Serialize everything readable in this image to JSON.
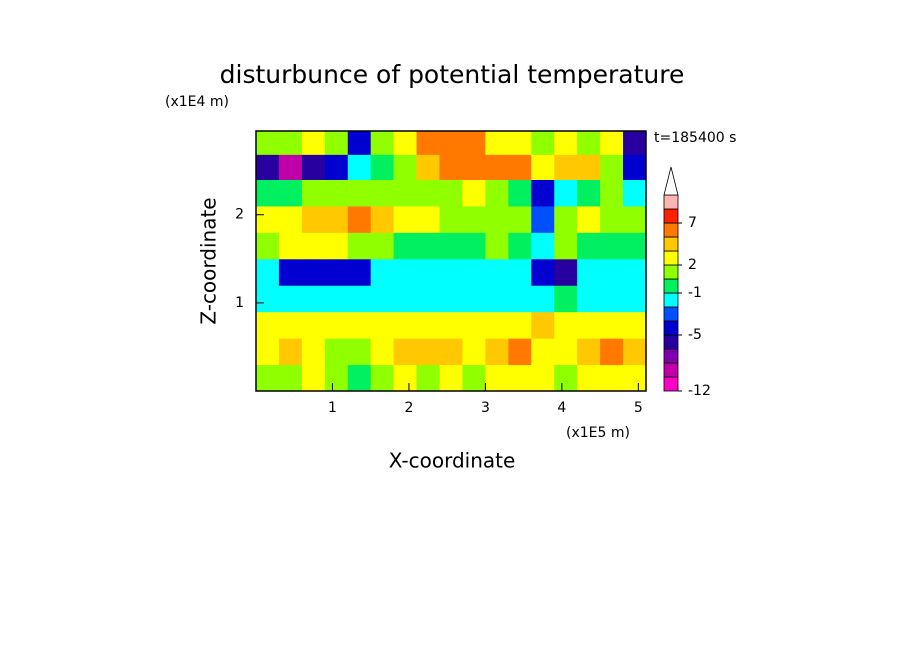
{
  "chart_data": {
    "type": "contourf",
    "title": "disturbunce of potential temperature",
    "xlabel": "X-coordinate",
    "ylabel": "Z-coordinate",
    "x_unit": "(x1E5 m)",
    "y_unit": "(x1E4 m)",
    "time_label": "t=185400 s",
    "xlim": [
      0,
      5.1
    ],
    "ylim": [
      0,
      2.95
    ],
    "xticks": [
      1,
      2,
      3,
      4,
      5
    ],
    "yticks": [
      1,
      2
    ],
    "x": [
      0.15,
      0.45,
      0.75,
      1.05,
      1.35,
      1.65,
      1.95,
      2.25,
      2.55,
      2.85,
      3.15,
      3.45,
      3.75,
      4.05,
      4.35,
      4.65,
      4.95
    ],
    "y": [
      0.15,
      0.45,
      0.75,
      1.05,
      1.35,
      1.65,
      1.95,
      2.25,
      2.55,
      2.82
    ],
    "z": [
      [
        1,
        1,
        2,
        1,
        0.5,
        1,
        2,
        1,
        2,
        1,
        2,
        2,
        3,
        1,
        2,
        3,
        2
      ],
      [
        3,
        4,
        2,
        1,
        1,
        3,
        4,
        4,
        4,
        3,
        4,
        5,
        3,
        2,
        4,
        5,
        4
      ],
      [
        2,
        2,
        3,
        2,
        3,
        3,
        2,
        2,
        3,
        3,
        2,
        3,
        4,
        2,
        3,
        3,
        2
      ],
      [
        -1.5,
        -1.5,
        -1.5,
        -1.5,
        -1.5,
        -1.5,
        -1.5,
        -1.5,
        -1.5,
        -1.5,
        -1.5,
        -1.5,
        -1.5,
        0.5,
        -1.5,
        -1.5,
        -1.5
      ],
      [
        -1.5,
        -4.5,
        -4.5,
        -4.5,
        -4.5,
        -1.5,
        -1.5,
        -1.5,
        -1.5,
        -1.5,
        -1.5,
        -1.5,
        -4.5,
        -5.5,
        -1.5,
        -1.5,
        -1.5
      ],
      [
        1.5,
        3,
        3,
        3,
        1.5,
        1.5,
        0.5,
        0.5,
        0.5,
        0.5,
        1.5,
        0.5,
        -1.5,
        1.5,
        0.5,
        0.5,
        0.5
      ],
      [
        3,
        3,
        4.5,
        4.5,
        5,
        4.5,
        3,
        3,
        1.5,
        1.5,
        1.5,
        1.5,
        -3,
        1.5,
        3,
        1.5,
        1.5
      ],
      [
        0.5,
        0.5,
        1.5,
        1.5,
        1.5,
        1.5,
        1.5,
        1.5,
        1.5,
        3,
        1.5,
        0.5,
        -4.5,
        -1.5,
        0.5,
        1.5,
        -1.5
      ],
      [
        -6,
        -7.5,
        -6,
        -4.5,
        -1.5,
        0.5,
        1.5,
        4.5,
        5,
        5,
        6,
        6,
        3,
        4.5,
        4.5,
        1.5,
        -4.5
      ],
      [
        1.5,
        1.5,
        3,
        1.5,
        -4.5,
        1.5,
        3,
        5,
        6,
        5,
        3,
        3,
        1.5,
        3,
        1.5,
        3,
        -6
      ]
    ],
    "levels": [
      -12,
      -9,
      -7,
      -6,
      -5,
      -4,
      -2,
      -1,
      1,
      2,
      4,
      5,
      7,
      9,
      11
    ],
    "colors": [
      "#ff00c8",
      "#c000a8",
      "#8000b0",
      "#2800a0",
      "#0000d0",
      "#0050ff",
      "#00ffff",
      "#00f060",
      "#90ff00",
      "#ffff00",
      "#ffc800",
      "#ff7800",
      "#ff2000",
      "#ffb4b4"
    ],
    "colorbar_ticks": [
      -12,
      -5,
      -1,
      2,
      7
    ]
  }
}
